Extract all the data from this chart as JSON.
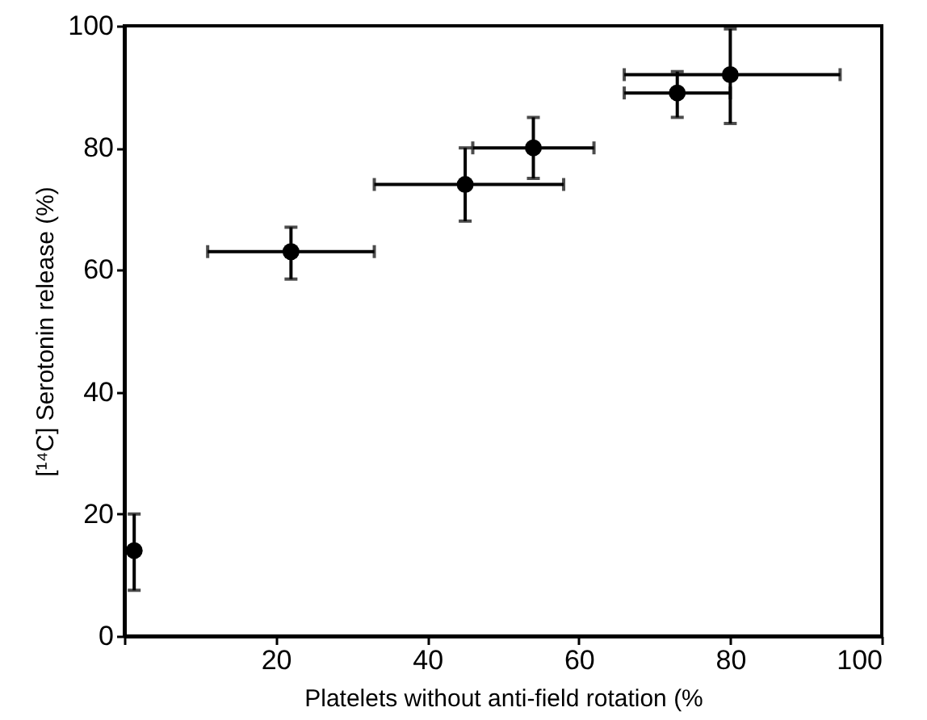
{
  "chart_data": {
    "type": "scatter",
    "xlabel": "Platelets without anti-field rotation (%",
    "ylabel": "[¹⁴C] Serotonin release (%)",
    "x": [
      1.3,
      22,
      45,
      54,
      73,
      80
    ],
    "values": [
      14,
      63,
      74,
      80,
      89,
      92
    ],
    "errors": [
      [
        7.5,
        20
      ],
      [
        58.5,
        67
      ],
      [
        68,
        80
      ],
      [
        75,
        85
      ],
      [
        85,
        92.5
      ],
      [
        84,
        99.5
      ]
    ],
    "xerrors": [
      null,
      [
        11,
        33
      ],
      [
        33,
        58
      ],
      [
        46,
        62
      ],
      [
        66,
        80
      ],
      [
        66,
        94.5
      ]
    ],
    "color": "#000000",
    "marker": "circle",
    "grid": false,
    "xlim": [
      0,
      100
    ],
    "xticks": [
      {
        "value": 0,
        "label": null
      },
      20,
      40,
      60,
      80,
      100
    ],
    "ylim": [
      0,
      100
    ],
    "yticks": [
      0,
      20,
      40,
      60,
      80,
      100
    ]
  }
}
